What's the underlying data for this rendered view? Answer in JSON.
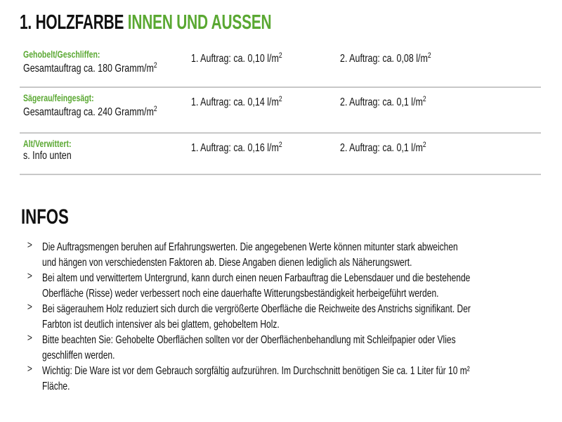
{
  "header": {
    "title_black": "1. HOLZFARBE",
    "title_green": "INNEN UND AUSSEN"
  },
  "table": {
    "rows": [
      {
        "label": "Gehobelt/Geschliffen:",
        "total": "Gesamtauftrag ca. 180 Gramm/m",
        "coat1": "1. Auftrag: ca. 0,10 l/m",
        "coat2": "2. Auftrag: ca. 0,08 l/m",
        "sup": "2"
      },
      {
        "label": "Sägerau/feingesägt:",
        "total": "Gesamtauftrag ca. 240 Gramm/m",
        "coat1": "1. Auftrag: ca. 0,14 l/m",
        "coat2": "2. Auftrag: ca. 0,1 l/m",
        "sup": "2"
      },
      {
        "label": "Alt/Verwittert:",
        "total": "s. Info unten",
        "coat1": "1. Auftrag: ca. 0,16 l/m",
        "coat2": "2. Auftrag: ca. 0,1 l/m",
        "sup": "2"
      }
    ]
  },
  "infos": {
    "title": "INFOS",
    "bullet_icon": "chevron-right-icon",
    "items": [
      {
        "lines": [
          "Die Auftragsmengen beruhen auf Erfahrungswerten. Die angegebenen Werte können mitunter stark abweichen",
          "und hängen von verschiedensten Faktoren ab. Diese Angaben dienen lediglich als Näherungswert."
        ]
      },
      {
        "lines": [
          "Bei altem und verwittertem Untergrund, kann durch einen neuen Farbauftrag die Lebensdauer und die bestehende",
          "Oberfläche (Risse) weder verbessert noch eine dauerhafte Witterungsbeständigkeit herbeigeführt werden."
        ]
      },
      {
        "lines": [
          "Bei sägerauhem Holz reduziert sich durch die vergrößerte Oberfläche die Reichweite des Anstrichs signifikant. Der",
          "Farbton ist deutlich intensiver als bei glattem, gehobeltem Holz."
        ]
      },
      {
        "lines": [
          "Bitte beachten Sie: Gehobelte Oberflächen sollten vor der Oberflächenbehandlung mit Schleifpapier oder Vlies",
          "geschliffen werden."
        ]
      },
      {
        "lines": [
          "Wichtig: Die Ware ist vor dem Gebrauch sorgfältig aufzurühren. Im Durchschnitt benötigen Sie ca. 1 Liter für 10 m²",
          "Fläche."
        ]
      }
    ]
  },
  "colors": {
    "accent": "#5aa832",
    "divider": "#c8c8c8"
  }
}
